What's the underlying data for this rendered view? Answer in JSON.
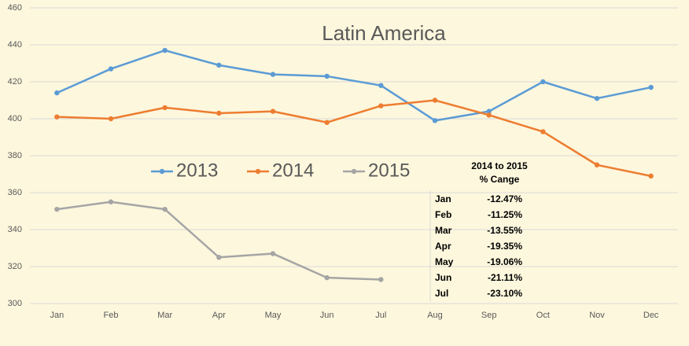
{
  "chart_data": {
    "type": "line",
    "title": "Latin America",
    "categories": [
      "Jan",
      "Feb",
      "Mar",
      "Apr",
      "May",
      "Jun",
      "Jul",
      "Aug",
      "Sep",
      "Oct",
      "Nov",
      "Dec"
    ],
    "series": [
      {
        "name": "2013",
        "color": "#5b9bd5",
        "values": [
          414,
          427,
          437,
          429,
          424,
          423,
          418,
          399,
          404,
          420,
          411,
          417
        ]
      },
      {
        "name": "2014",
        "color": "#ed7d31",
        "values": [
          401,
          400,
          406,
          403,
          404,
          398,
          407,
          410,
          402,
          393,
          375,
          369
        ]
      },
      {
        "name": "2015",
        "color": "#a5a5a5",
        "values": [
          351,
          355,
          351,
          325,
          327,
          314,
          313,
          null,
          null,
          null,
          null,
          null
        ]
      }
    ],
    "ylim": [
      300,
      460
    ],
    "yticks": [
      300,
      320,
      340,
      360,
      380,
      400,
      420,
      440,
      460
    ],
    "grid": true
  },
  "table": {
    "header": [
      "2014 to 2015",
      "% Cange"
    ],
    "rows": [
      [
        "Jan",
        "-12.47%"
      ],
      [
        "Feb",
        "-11.25%"
      ],
      [
        "Mar",
        "-13.55%"
      ],
      [
        "Apr",
        "-19.35%"
      ],
      [
        "May",
        "-19.06%"
      ],
      [
        "Jun",
        "-21.11%"
      ],
      [
        "Jul",
        "-23.10%"
      ]
    ]
  }
}
